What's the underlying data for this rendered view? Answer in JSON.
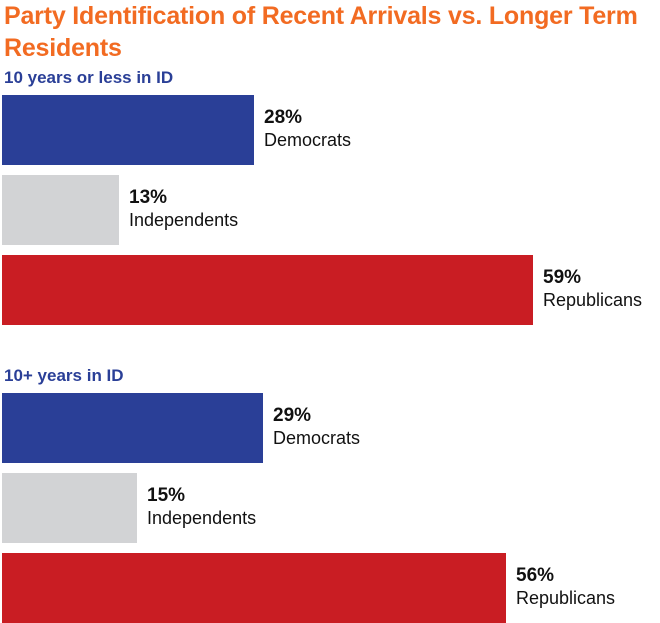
{
  "chart_data": {
    "type": "bar",
    "title": "Party Identification of Recent Arrivals vs. Longer Term Residents",
    "orientation": "horizontal",
    "value_format": "{v}%",
    "xlim": [
      0,
      60
    ],
    "colors": {
      "Democrats": "#2a3f97",
      "Independents": "#d2d3d5",
      "Republicans": "#c91d23"
    },
    "groups": [
      {
        "label": "10 years or less in ID",
        "bars": [
          {
            "category": "Democrats",
            "value": 28
          },
          {
            "category": "Independents",
            "value": 13
          },
          {
            "category": "Republicans",
            "value": 59
          }
        ]
      },
      {
        "label": "10+ years in ID",
        "bars": [
          {
            "category": "Democrats",
            "value": 29
          },
          {
            "category": "Independents",
            "value": 15
          },
          {
            "category": "Republicans",
            "value": 56
          }
        ]
      }
    ]
  }
}
